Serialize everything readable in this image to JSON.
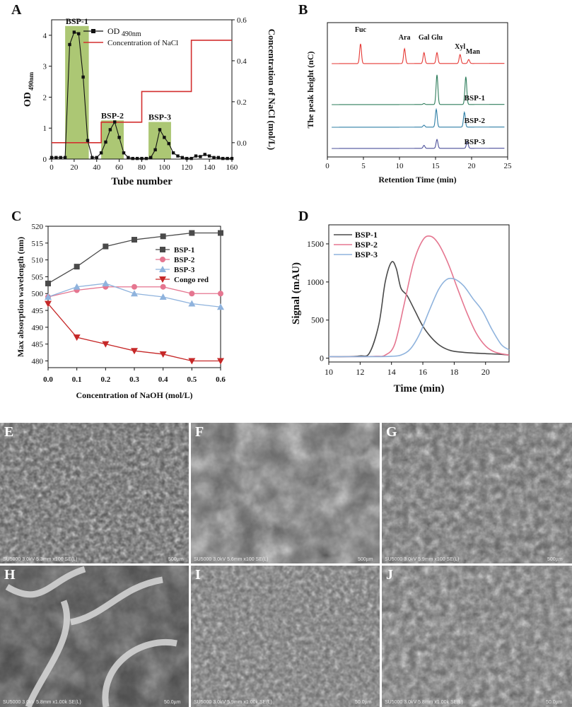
{
  "panel_letters": [
    "A",
    "B",
    "C",
    "D",
    "E",
    "F",
    "G",
    "H",
    "I",
    "J"
  ],
  "chart_data": [
    {
      "panel": "A",
      "type": "line",
      "xlabel": "Tube number",
      "ylabel": "OD 490nm",
      "ylabel_sub": "490nm",
      "ylabel_main": "OD",
      "y2label": "Concentration of NaCl (mol/L)",
      "xlim": [
        0,
        160
      ],
      "xticks": [
        0,
        20,
        40,
        60,
        80,
        100,
        120,
        140,
        160
      ],
      "ylim": [
        0,
        4.5
      ],
      "yticks": [
        0,
        1,
        2,
        3,
        4
      ],
      "y2lim": [
        -0.08,
        0.6
      ],
      "y2ticks": [
        0.0,
        0.2,
        0.4,
        0.6
      ],
      "y2ticklabels": [
        "0.0",
        "0.2",
        "0.4",
        "0.6"
      ],
      "legend": [
        "OD 490nm",
        "Concentration of NaCl"
      ],
      "fractions": [
        {
          "label": "BSP-1",
          "range": [
            12,
            33
          ],
          "top": 4.3
        },
        {
          "label": "BSP-2",
          "range": [
            44,
            64
          ],
          "top": 1.25
        },
        {
          "label": "BSP-3",
          "range": [
            86,
            106
          ],
          "top": 1.2
        }
      ],
      "od": {
        "x": [
          0,
          4,
          8,
          12,
          16,
          20,
          24,
          28,
          32,
          36,
          40,
          44,
          48,
          52,
          56,
          60,
          64,
          68,
          72,
          76,
          80,
          84,
          88,
          92,
          96,
          100,
          104,
          108,
          112,
          116,
          120,
          124,
          128,
          132,
          136,
          140,
          144,
          148,
          152,
          156,
          160
        ],
        "y": [
          0.05,
          0.05,
          0.05,
          0.05,
          3.7,
          4.1,
          4.05,
          2.65,
          0.6,
          0.05,
          0.05,
          0.2,
          0.55,
          0.95,
          1.2,
          0.7,
          0.2,
          0.05,
          0.02,
          0.02,
          0.02,
          0.02,
          0.05,
          0.3,
          0.95,
          0.7,
          0.5,
          0.2,
          0.1,
          0.05,
          0.02,
          0.02,
          0.1,
          0.08,
          0.15,
          0.1,
          0.05,
          0.05,
          0.02,
          0.02,
          0.02
        ],
        "color": "#111111",
        "marker_color": "#5a6b2e"
      },
      "nacl": {
        "x": [
          0,
          36,
          36,
          44,
          44,
          80,
          80,
          124,
          124,
          160
        ],
        "y": [
          0.0,
          0.0,
          0.0,
          0.0,
          0.1,
          0.1,
          0.25,
          0.25,
          0.5,
          0.5
        ],
        "color": "#d32f2f"
      }
    },
    {
      "panel": "B",
      "type": "line",
      "xlabel": "Retention Time (min)",
      "ylabel": "The peak height (nC)",
      "xlim": [
        0,
        25
      ],
      "xticks": [
        0,
        5,
        10,
        15,
        20,
        25
      ],
      "peak_labels": [
        "Fuc",
        "Ara",
        "Gal",
        "Glu",
        "Xyl",
        "Man"
      ],
      "peak_times": [
        4.6,
        10.7,
        13.4,
        15.2,
        18.4,
        19.6
      ],
      "series": [
        {
          "name": "",
          "color": "#e53935",
          "baseline": 0,
          "peaks": [
            [
              4.6,
              1.0
            ],
            [
              10.7,
              0.75
            ],
            [
              13.4,
              0.55
            ],
            [
              15.2,
              0.55
            ],
            [
              18.4,
              0.45
            ],
            [
              19.6,
              0.2
            ]
          ]
        },
        {
          "name": "BSP-1",
          "color": "#2e7d5b",
          "baseline": 1,
          "peaks": [
            [
              13.4,
              0.05
            ],
            [
              15.2,
              1.5
            ],
            [
              19.2,
              1.4
            ]
          ]
        },
        {
          "name": "BSP-2",
          "color": "#2f7fa6",
          "baseline": 2,
          "peaks": [
            [
              13.4,
              0.1
            ],
            [
              15.1,
              0.9
            ],
            [
              19.0,
              0.75
            ]
          ]
        },
        {
          "name": "BSP-3",
          "color": "#4b4f9a",
          "baseline": 3,
          "peaks": [
            [
              13.4,
              0.15
            ],
            [
              15.2,
              0.45
            ],
            [
              19.4,
              0.35
            ]
          ]
        }
      ]
    },
    {
      "panel": "C",
      "type": "line",
      "xlabel": "Concentration of NaOH (mol/L)",
      "ylabel": "Max absorption wavelength (nm)",
      "xlim": [
        0,
        0.6
      ],
      "xticks": [
        0.0,
        0.1,
        0.2,
        0.3,
        0.4,
        0.5,
        0.6
      ],
      "xticklabels": [
        "0.0",
        "0.1",
        "0.2",
        "0.3",
        "0.4",
        "0.5",
        "0.6"
      ],
      "ylim": [
        478,
        520
      ],
      "yticks": [
        480,
        485,
        490,
        495,
        500,
        505,
        510,
        515,
        520
      ],
      "categories": [
        0.0,
        0.1,
        0.2,
        0.3,
        0.4,
        0.5,
        0.6
      ],
      "series": [
        {
          "name": "BSP-1",
          "color": "#4a4a4a",
          "marker": "square",
          "values": [
            503,
            508,
            514,
            516,
            517,
            518,
            518
          ]
        },
        {
          "name": "BSP-2",
          "color": "#e57690",
          "marker": "circle",
          "values": [
            499,
            501,
            502,
            502,
            502,
            500,
            500
          ]
        },
        {
          "name": "BSP-3",
          "color": "#8fb3dd",
          "marker": "triangle",
          "values": [
            499,
            502,
            503,
            500,
            499,
            497,
            496
          ]
        },
        {
          "name": "Congo red",
          "color": "#c62828",
          "marker": "triangle-down",
          "values": [
            497,
            487,
            485,
            483,
            482,
            480,
            480
          ]
        }
      ]
    },
    {
      "panel": "D",
      "type": "line",
      "xlabel": "Time (min)",
      "ylabel": "Signal (mAU)",
      "xlim": [
        10,
        21.5
      ],
      "xticks": [
        10,
        12,
        14,
        16,
        18,
        20
      ],
      "ylim": [
        -50,
        1750
      ],
      "yticks": [
        0,
        500,
        1000,
        1500
      ],
      "series": [
        {
          "name": "BSP-1",
          "color": "#4a4a4a",
          "x": [
            10,
            11,
            12,
            12.6,
            13.2,
            13.6,
            14.0,
            14.3,
            14.6,
            15.0,
            15.5,
            16,
            16.5,
            17,
            17.5,
            18,
            19,
            20,
            21,
            21.5
          ],
          "y": [
            20,
            20,
            30,
            70,
            450,
            1000,
            1260,
            1180,
            920,
            820,
            620,
            420,
            280,
            180,
            120,
            90,
            70,
            60,
            50,
            40
          ]
        },
        {
          "name": "BSP-2",
          "color": "#e57690",
          "x": [
            10,
            12,
            13,
            13.6,
            14.2,
            14.8,
            15.4,
            16.0,
            16.5,
            17.0,
            17.6,
            18.2,
            18.8,
            19.4,
            20,
            20.6,
            21.5
          ],
          "y": [
            20,
            20,
            25,
            40,
            180,
            700,
            1250,
            1550,
            1600,
            1500,
            1250,
            920,
            600,
            330,
            160,
            80,
            40
          ]
        },
        {
          "name": "BSP-3",
          "color": "#8fb3dd",
          "x": [
            10,
            13,
            14,
            14.6,
            15.2,
            15.8,
            16.4,
            17.0,
            17.5,
            18.0,
            18.6,
            19.2,
            19.8,
            20.4,
            21,
            21.5
          ],
          "y": [
            20,
            20,
            25,
            40,
            120,
            320,
            620,
            900,
            1030,
            1040,
            950,
            780,
            620,
            380,
            180,
            110
          ]
        }
      ]
    }
  ],
  "sem": [
    {
      "letter": "E",
      "caption": "SU5000 3.0kV 5.3mm x100 SE(L)",
      "scale": "500µm"
    },
    {
      "letter": "F",
      "caption": "SU5000 3.0kV 5.6mm x100 SE(L)",
      "scale": "500µm"
    },
    {
      "letter": "G",
      "caption": "SU5000 3.0kV 5.9mm x100 SE(L)",
      "scale": "500µm"
    },
    {
      "letter": "H",
      "caption": "SU5000 3.0kV 5.8mm x1.00k SE(L)",
      "scale": "50.0µm"
    },
    {
      "letter": "I",
      "caption": "SU5000 3.0kV 5.9mm x1.00k SE(L)",
      "scale": "50.0µm"
    },
    {
      "letter": "J",
      "caption": "SU5000 3.0kV 5.8mm x1.00k SE(L)",
      "scale": "50.0µm"
    }
  ]
}
